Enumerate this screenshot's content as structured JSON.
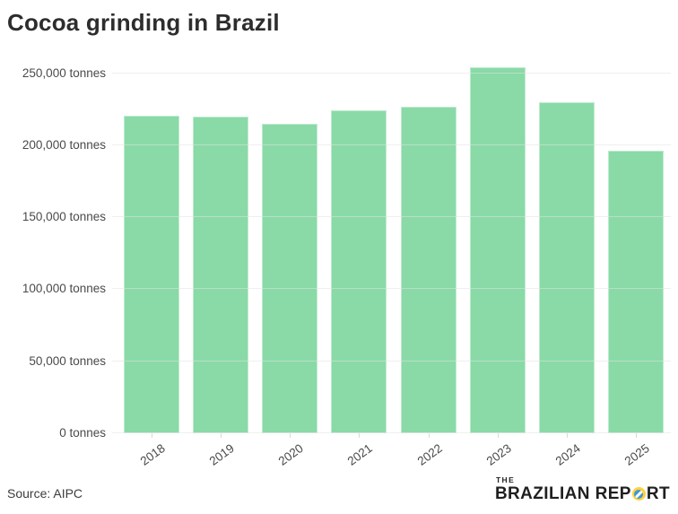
{
  "title": "Cocoa grinding in Brazil",
  "source": "Source: AIPC",
  "logo": {
    "the": "THE",
    "text_left": "BRAZILIAN REP",
    "text_right": "RT"
  },
  "colors": {
    "bar": "#8BD9A8",
    "grid": "#ececec",
    "title_text": "#2d2d2d",
    "axis_text": "#4a4a4a",
    "logo_yellow": "#FFD43B",
    "logo_blue": "#3F96D8",
    "logo_text": "#1f1f1f",
    "background": "#ffffff"
  },
  "chart_data": {
    "type": "bar",
    "title": "Cocoa grinding in Brazil",
    "categories": [
      "2018",
      "2019",
      "2020",
      "2021",
      "2022",
      "2023",
      "2024",
      "2025"
    ],
    "values": [
      220500,
      220000,
      215000,
      224000,
      226500,
      254000,
      230000,
      196000
    ],
    "xlabel": "",
    "ylabel": "tonnes",
    "ylim": [
      0,
      257000
    ],
    "yticks": [
      0,
      50000,
      100000,
      150000,
      200000,
      250000
    ],
    "ytick_labels": [
      "0 tonnes",
      "50,000 tonnes",
      "100,000 tonnes",
      "150,000 tonnes",
      "200,000 tonnes",
      "250,000 tonnes"
    ],
    "grid": true,
    "legend": false,
    "x_labels_rotated": true,
    "source": "AIPC"
  }
}
